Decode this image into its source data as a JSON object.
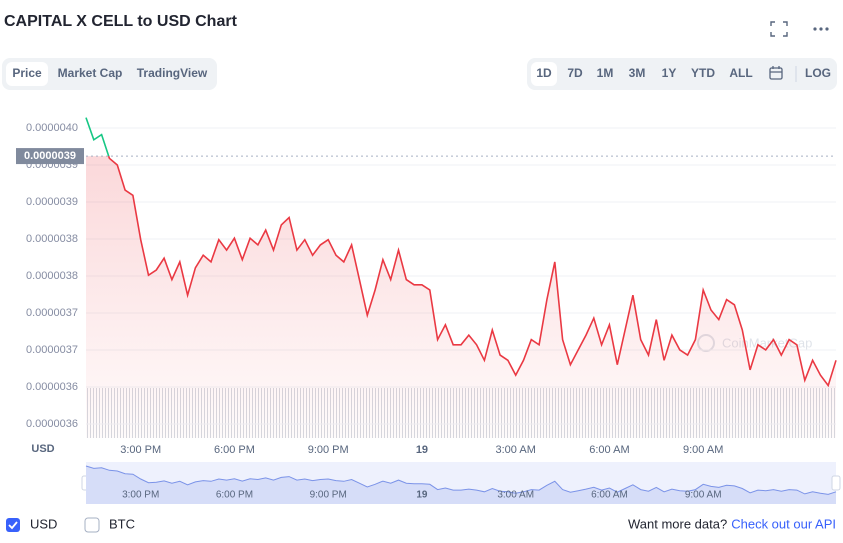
{
  "header": {
    "title": "CAPITAL X CELL to USD Chart"
  },
  "tabs": {
    "items": [
      "Price",
      "Market Cap",
      "TradingView"
    ],
    "selected": 0
  },
  "ranges": {
    "items": [
      "1D",
      "7D",
      "1M",
      "3M",
      "1Y",
      "YTD",
      "ALL"
    ],
    "selected": 0
  },
  "log_button": "LOG",
  "watermark": "CoinMarketCap",
  "other_series": [
    {
      "name": "BTC",
      "checked": false
    }
  ],
  "footer": {
    "text": "Want more data?",
    "link": "Check out our API"
  },
  "chart_data": {
    "type": "line",
    "categories": [
      null,
      null,
      null,
      null,
      null,
      null,
      null,
      "3:00 PM",
      null,
      null,
      null,
      null,
      null,
      null,
      null,
      null,
      null,
      null,
      null,
      "6:00 PM",
      null,
      null,
      null,
      null,
      null,
      null,
      null,
      null,
      null,
      null,
      null,
      "9:00 PM",
      null,
      null,
      null,
      null,
      null,
      null,
      null,
      null,
      null,
      null,
      null,
      "19",
      null,
      null,
      null,
      null,
      null,
      null,
      null,
      null,
      null,
      null,
      null,
      "3:00 AM",
      null,
      null,
      null,
      null,
      null,
      null,
      null,
      null,
      null,
      null,
      null,
      "6:00 AM",
      null,
      null,
      null,
      null,
      null,
      null,
      null,
      null,
      null,
      null,
      null,
      "9:00 AM",
      null,
      null,
      null,
      null,
      null,
      null,
      null,
      null,
      null,
      null,
      null,
      null,
      null,
      null,
      null,
      null,
      null
    ],
    "series": [
      {
        "name": "USD",
        "checked": true,
        "color": "#ea3943",
        "up_color": "#16c784",
        "values": [
          3.984e-06,
          3.954e-06,
          3.961e-06,
          3.929e-06,
          3.92e-06,
          3.886e-06,
          3.879e-06,
          3.819e-06,
          3.771e-06,
          3.778e-06,
          3.794e-06,
          3.765e-06,
          3.789e-06,
          3.744e-06,
          3.781e-06,
          3.798e-06,
          3.789e-06,
          3.819e-06,
          3.805e-06,
          3.821e-06,
          3.792e-06,
          3.821e-06,
          3.812e-06,
          3.832e-06,
          3.805e-06,
          3.839e-06,
          3.849e-06,
          3.805e-06,
          3.819e-06,
          3.798e-06,
          3.812e-06,
          3.819e-06,
          3.798e-06,
          3.789e-06,
          3.812e-06,
          3.765e-06,
          3.717e-06,
          3.751e-06,
          3.792e-06,
          3.765e-06,
          3.805e-06,
          3.765e-06,
          3.758e-06,
          3.758e-06,
          3.751e-06,
          3.684e-06,
          3.704e-06,
          3.677e-06,
          3.677e-06,
          3.69e-06,
          3.677e-06,
          3.656e-06,
          3.697e-06,
          3.663e-06,
          3.656e-06,
          3.636e-06,
          3.656e-06,
          3.684e-06,
          3.677e-06,
          3.738e-06,
          3.789e-06,
          3.684e-06,
          3.65e-06,
          3.67e-06,
          3.69e-06,
          3.713e-06,
          3.677e-06,
          3.704e-06,
          3.65e-06,
          3.697e-06,
          3.744e-06,
          3.684e-06,
          3.663e-06,
          3.711e-06,
          3.656e-06,
          3.69e-06,
          3.67e-06,
          3.663e-06,
          3.684e-06,
          3.751e-06,
          3.724e-06,
          3.711e-06,
          3.738e-06,
          3.731e-06,
          3.697e-06,
          3.643e-06,
          3.677e-06,
          3.67e-06,
          3.684e-06,
          3.663e-06,
          3.684e-06,
          3.677e-06,
          3.629e-06,
          3.656e-06,
          3.636e-06,
          3.622e-06,
          3.656e-06
        ]
      }
    ],
    "reference_price": {
      "value": 3.932e-06,
      "label": "0.0000039"
    },
    "ylim": [
      3.551e-06,
      3.984e-06
    ],
    "yticks": [
      {
        "value": 3.97e-06,
        "label": "0.0000040"
      },
      {
        "value": 3.92e-06,
        "label": "0.0000039"
      },
      {
        "value": 3.87e-06,
        "label": "0.0000039"
      },
      {
        "value": 3.82e-06,
        "label": "0.0000038"
      },
      {
        "value": 3.77e-06,
        "label": "0.0000038"
      },
      {
        "value": 3.72e-06,
        "label": "0.0000037"
      },
      {
        "value": 3.67e-06,
        "label": "0.0000037"
      },
      {
        "value": 3.62e-06,
        "label": "0.0000036"
      },
      {
        "value": 3.57e-06,
        "label": "0.0000036"
      }
    ],
    "grid": true
  }
}
